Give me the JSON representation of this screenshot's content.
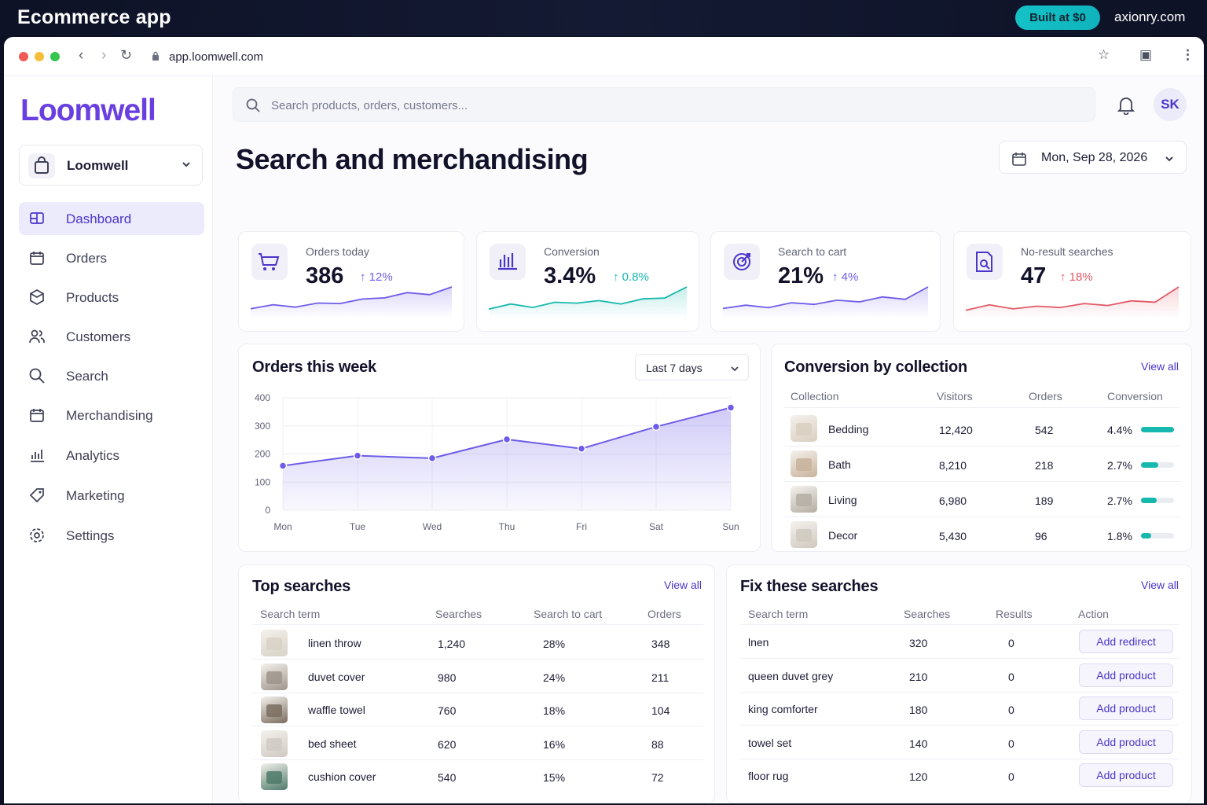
{
  "banner": {
    "title": "Ecommerce app",
    "pill": "Built at $0",
    "domain": "axionry.com"
  },
  "browser": {
    "url": "app.loomwell.com"
  },
  "sidebar": {
    "logo": "Loomwell",
    "store": "Loomwell",
    "items": [
      {
        "label": "Dashboard",
        "icon": "dashboard-icon",
        "active": true
      },
      {
        "label": "Orders",
        "icon": "orders-icon"
      },
      {
        "label": "Products",
        "icon": "products-icon"
      },
      {
        "label": "Customers",
        "icon": "customers-icon"
      },
      {
        "label": "Search",
        "icon": "search-icon"
      },
      {
        "label": "Merchandising",
        "icon": "merchandising-icon"
      },
      {
        "label": "Analytics",
        "icon": "analytics-icon"
      },
      {
        "label": "Marketing",
        "icon": "marketing-icon"
      },
      {
        "label": "Settings",
        "icon": "settings-icon"
      }
    ]
  },
  "header": {
    "search_placeholder": "Search products, orders, customers...",
    "avatar": "SK"
  },
  "page": {
    "title": "Search and merchandising",
    "date": "Mon, Sep 28, 2026"
  },
  "kpis": [
    {
      "label": "Orders today",
      "value": "386",
      "delta": "12%",
      "trend": "up",
      "color": "#6d5ce8",
      "icon": "cart-icon"
    },
    {
      "label": "Conversion",
      "value": "3.4%",
      "delta": "0.8%",
      "trend": "up",
      "color": "#17b8ad",
      "icon": "bar-chart-icon"
    },
    {
      "label": "Search to cart",
      "value": "21%",
      "delta": "4%",
      "trend": "up",
      "color": "#6d5ce8",
      "icon": "target-icon"
    },
    {
      "label": "No-result searches",
      "value": "47",
      "delta": "18%",
      "trend": "up",
      "color": "#e25a66",
      "icon": "search-document-icon"
    }
  ],
  "orders_chart": {
    "title": "Orders this week",
    "range": "Last 7 days",
    "yticks": [
      "400",
      "300",
      "200",
      "100",
      "0"
    ]
  },
  "chart_data": {
    "type": "area",
    "title": "Orders this week",
    "categories": [
      "Mon",
      "Tue",
      "Wed",
      "Thu",
      "Fri",
      "Sat",
      "Sun"
    ],
    "values": [
      158,
      194,
      185,
      252,
      219,
      297,
      365
    ],
    "ylim": [
      0,
      400
    ],
    "color": "#6d5ce8",
    "grid": true
  },
  "collections": {
    "title": "Conversion by collection",
    "view_all": "View all",
    "headers": [
      "Collection",
      "Visitors",
      "Orders",
      "Conversion"
    ],
    "rows": [
      {
        "name": "Bedding",
        "visitors": "12,420",
        "orders": "542",
        "conversion": "4.4%",
        "share": 1.0
      },
      {
        "name": "Bath",
        "visitors": "8,210",
        "orders": "218",
        "conversion": "2.7%",
        "share": 0.52
      },
      {
        "name": "Living",
        "visitors": "6,980",
        "orders": "189",
        "conversion": "2.7%",
        "share": 0.48
      },
      {
        "name": "Decor",
        "visitors": "5,430",
        "orders": "96",
        "conversion": "1.8%",
        "share": 0.3
      }
    ]
  },
  "top_searches": {
    "title": "Top searches",
    "view_all": "View all",
    "headers": [
      "Search term",
      "Searches",
      "Search to cart",
      "Orders"
    ],
    "rows": [
      {
        "term": "linen throw",
        "searches": "1,240",
        "stc": "28%",
        "orders": "348"
      },
      {
        "term": "duvet cover",
        "searches": "980",
        "stc": "24%",
        "orders": "211"
      },
      {
        "term": "waffle towel",
        "searches": "760",
        "stc": "18%",
        "orders": "104"
      },
      {
        "term": "bed sheet",
        "searches": "620",
        "stc": "16%",
        "orders": "88"
      },
      {
        "term": "cushion cover",
        "searches": "540",
        "stc": "15%",
        "orders": "72"
      }
    ]
  },
  "fix_searches": {
    "title": "Fix these searches",
    "view_all": "View all",
    "headers": [
      "Search term",
      "Searches",
      "Results",
      "Action"
    ],
    "rows": [
      {
        "term": "lnen",
        "searches": "320",
        "results": "0",
        "action": "Add redirect"
      },
      {
        "term": "queen duvet grey",
        "searches": "210",
        "results": "0",
        "action": "Add product"
      },
      {
        "term": "king comforter",
        "searches": "180",
        "results": "0",
        "action": "Add product"
      },
      {
        "term": "towel set",
        "searches": "140",
        "results": "0",
        "action": "Add product"
      },
      {
        "term": "floor rug",
        "searches": "120",
        "results": "0",
        "action": "Add product"
      }
    ]
  }
}
